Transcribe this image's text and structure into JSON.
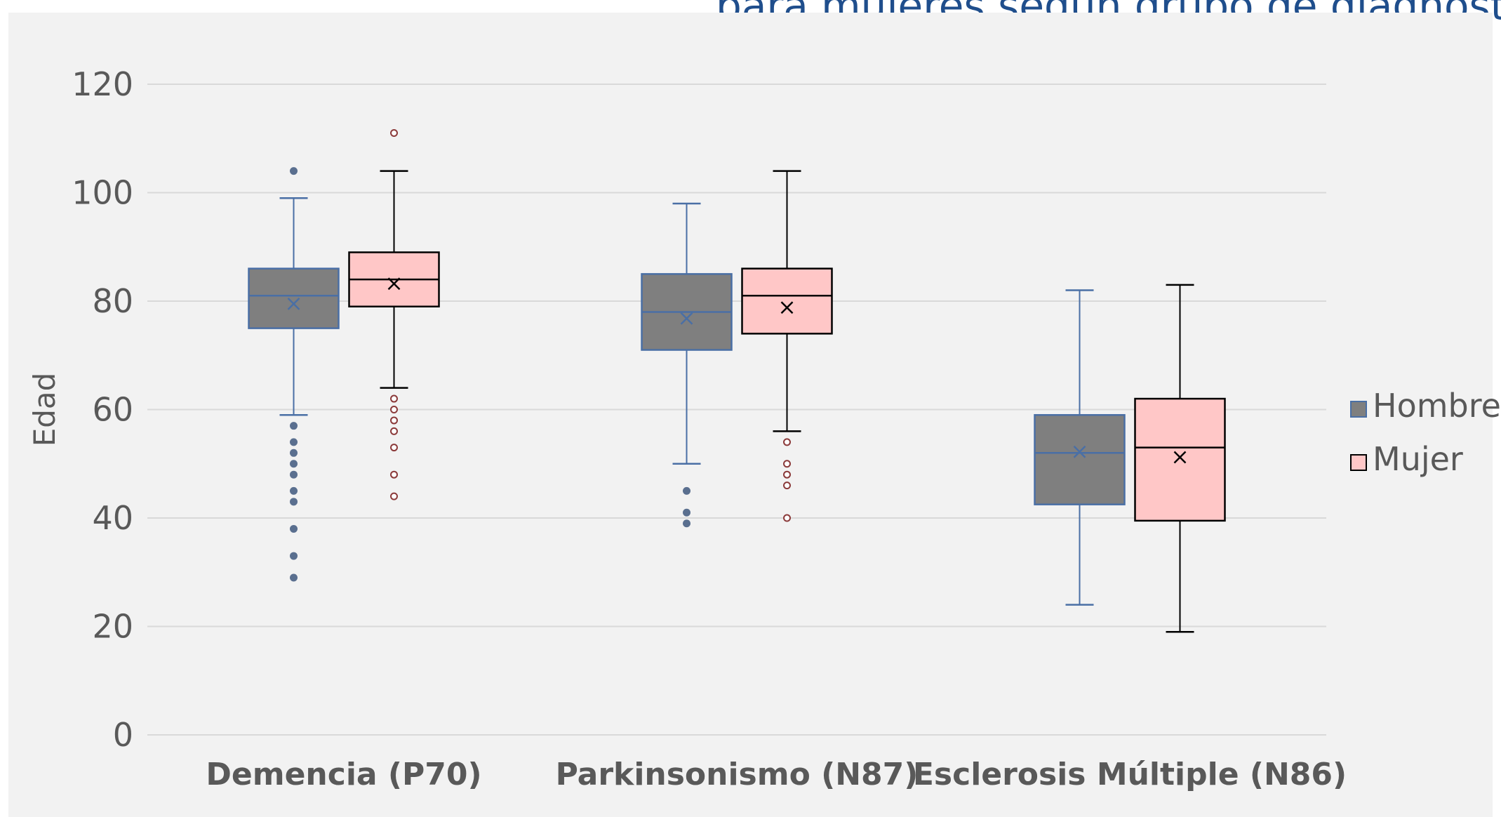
{
  "header": {
    "title_fragment": "para mujeres según grupo de diagnóstico"
  },
  "colors": {
    "background": "#f2f2f2",
    "grid": "#d9d9d9",
    "axis_text": "#595959",
    "hombre_fill": "#7f7f7f",
    "hombre_stroke": "#4a6fa5",
    "mujer_fill": "#ffc7c7",
    "mujer_stroke": "#000000",
    "mujer_outlier": "#8b3a3a",
    "title": "#1f4e8c"
  },
  "chart_data": {
    "type": "boxplot",
    "title": "para mujeres según grupo de diagnóstico",
    "xlabel": "",
    "ylabel": "Edad",
    "ylim": [
      0,
      120
    ],
    "yticks": [
      "0",
      "20",
      "40",
      "60",
      "80",
      "100",
      "120"
    ],
    "grid": true,
    "legend_position": "right",
    "categories": [
      "Demencia (P70)",
      "Parkinsonismo (N87)",
      "Esclerosis Múltiple (N86)"
    ],
    "series": [
      {
        "name": "Hombre",
        "boxes": [
          {
            "whisker_low": 59,
            "q1": 75,
            "median": 81,
            "q3": 86,
            "whisker_high": 99,
            "mean": 79.5,
            "outliers": [
              104,
              57,
              54,
              52,
              50,
              48,
              45,
              43,
              38,
              33,
              29
            ]
          },
          {
            "whisker_low": 50,
            "q1": 71,
            "median": 78,
            "q3": 85,
            "whisker_high": 98,
            "mean": 76.8,
            "outliers": [
              45,
              41,
              39
            ]
          },
          {
            "whisker_low": 24,
            "q1": 42.5,
            "median": 52,
            "q3": 59,
            "whisker_high": 82,
            "mean": 52.2,
            "outliers": []
          }
        ]
      },
      {
        "name": "Mujer",
        "boxes": [
          {
            "whisker_low": 64,
            "q1": 79,
            "median": 84,
            "q3": 89,
            "whisker_high": 104,
            "mean": 83.2,
            "outliers": [
              111,
              62,
              60,
              58,
              56,
              53,
              48,
              44
            ]
          },
          {
            "whisker_low": 56,
            "q1": 74,
            "median": 81,
            "q3": 86,
            "whisker_high": 104,
            "mean": 78.8,
            "outliers": [
              54,
              50,
              48,
              46,
              40
            ]
          },
          {
            "whisker_low": 19,
            "q1": 39.5,
            "median": 53,
            "q3": 62,
            "whisker_high": 83,
            "mean": 51.2,
            "outliers": []
          }
        ]
      }
    ]
  }
}
